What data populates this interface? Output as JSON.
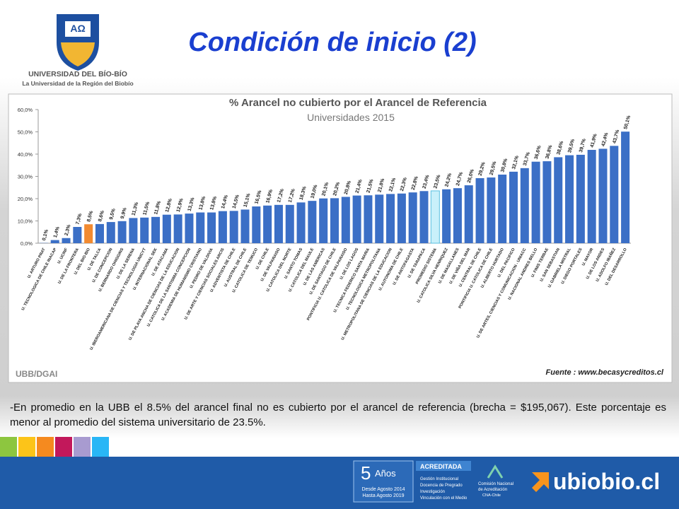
{
  "header": {
    "title": "Condición de inicio (2)",
    "university": "UNIVERSIDAD DEL BÍO-BÍO",
    "tagline": "La Universidad de la Región del Biobío"
  },
  "chart_data": {
    "type": "bar",
    "title": "% Arancel no cubierto por el Arancel de Referencia",
    "subtitle": "Universidades 2015",
    "categories": [
      "U. ARTURO PRAT",
      "U. TECNOLOGICA DE CHILE INACAP",
      "U. UCINF",
      "U. DE LA FRONTERA",
      "U. DEL BIO-BIO",
      "U. DE TALCA",
      "U. DE CONCEPCION",
      "U. BERNARDO OHIGGINS",
      "U. DE LA SERENA",
      "U. IBEROAMERICANA DE CIENCIAS Y TECNOLOGIA UNICYT",
      "U. INTERNACIONAL SEK",
      "U. DE ATACAMA",
      "U. DE PLAYA ANCHA DE CIENCIAS DE LA EDUCACION",
      "U. CATOLICA DE LA SANTISIMA CONCEPCION",
      "U. ACADEMIA DE HUMANISMO CRISTIANO",
      "U. PEDRO DE VALDIVIA",
      "U. DE ARTE Y CIENCIAS SOCIALES ARCIS",
      "U. ADVENTISTA DE CHILE",
      "U. AUSTRAL DE CHILE",
      "U. CATOLICA DE TEMUCO",
      "U. DE CHILE",
      "U. DE VALPARAISO",
      "U. CATOLICA DEL NORTE",
      "U. SANTO TOMAS",
      "U. CATOLICA DEL MAULE",
      "U. DE LAS AMERICAS",
      "U. DE SANTIAGO DE CHILE",
      "PONTIFICIA U. CATOLICA DE VALPARAISO",
      "U. DE LOS LAGOS",
      "U. TECNICA FEDERICO SANTA MARIA",
      "U. TECNOLOGICA METROPOLITANA",
      "U. METROPOLITANA DE CIENCIAS DE LA EDUCACION",
      "U. AUTONOMA DE CHILE",
      "U. DE ANTOFAGASTA",
      "U. DE TARAPACA",
      "PROMEDIO SISTEMA",
      "U. CATOLICA SILVA HENRIQUEZ",
      "U. DE MAGALLANES",
      "U. DE VIÑA DEL MAR",
      "U. CENTRAL DE CHILE",
      "PONTIFICIA U. CATOLICA DE CHILE",
      "U. ALBERTO HURTADO",
      "U. DEL PACIFICO",
      "U. DE ARTES, CIENCIAS Y COMUNICACION - UNIACC",
      "U. NACIONAL ANDRES BELLO",
      "U. FINIS TERRAE",
      "U. SAN SEBASTIAN",
      "U. GABRIELA MISTRAL",
      "U. DIEGO PORTALES",
      "U. MAYOR",
      "U. DE LOS ANDES",
      "U. ADOLFO IBAÑEZ",
      "U. DEL DESARROLLO"
    ],
    "values": [
      0.1,
      1.4,
      2.3,
      7.3,
      8.5,
      8.6,
      9.5,
      9.9,
      11.3,
      11.5,
      11.8,
      12.8,
      12.9,
      13.3,
      13.8,
      13.8,
      14.4,
      14.5,
      15.1,
      16.5,
      16.9,
      17.2,
      17.2,
      18.3,
      19.0,
      20.1,
      20.2,
      20.8,
      21.4,
      21.5,
      21.8,
      22.1,
      22.3,
      22.8,
      23.4,
      23.5,
      24.2,
      24.7,
      26.0,
      29.2,
      29.5,
      30.8,
      32.1,
      33.7,
      36.6,
      36.8,
      38.6,
      39.5,
      39.7,
      41.9,
      42.4,
      43.7,
      50.1
    ],
    "value_labels": [
      "0,1%",
      "1,4%",
      "2,3%",
      "7,3%",
      "8,5%",
      "8,6%",
      "9,5%",
      "9,9%",
      "11,3%",
      "11,5%",
      "11,8%",
      "12,8%",
      "12,9%",
      "13,3%",
      "13,8%",
      "13,8%",
      "14,4%",
      "14,5%",
      "15,1%",
      "16,5%",
      "16,9%",
      "17,2%",
      "17,2%",
      "18,3%",
      "19,0%",
      "20,1%",
      "20,2%",
      "20,8%",
      "21,4%",
      "21,5%",
      "21,8%",
      "22,1%",
      "22,3%",
      "22,8%",
      "23,4%",
      "23,5%",
      "24,2%",
      "24,7%",
      "26,0%",
      "29,2%",
      "29,5%",
      "30,8%",
      "32,1%",
      "33,7%",
      "36,6%",
      "36,8%",
      "38,6%",
      "39,5%",
      "39,7%",
      "41,9%",
      "42,4%",
      "43,7%",
      "50,1%"
    ],
    "colors": [
      "#3b6fc6",
      "#3b6fc6",
      "#3b6fc6",
      "#3b6fc6",
      "#f28a30",
      "#3b6fc6",
      "#3b6fc6",
      "#3b6fc6",
      "#3b6fc6",
      "#3b6fc6",
      "#3b6fc6",
      "#3b6fc6",
      "#3b6fc6",
      "#3b6fc6",
      "#3b6fc6",
      "#3b6fc6",
      "#3b6fc6",
      "#3b6fc6",
      "#3b6fc6",
      "#3b6fc6",
      "#3b6fc6",
      "#3b6fc6",
      "#3b6fc6",
      "#3b6fc6",
      "#3b6fc6",
      "#3b6fc6",
      "#3b6fc6",
      "#3b6fc6",
      "#3b6fc6",
      "#3b6fc6",
      "#3b6fc6",
      "#3b6fc6",
      "#3b6fc6",
      "#3b6fc6",
      "#3b6fc6",
      "#c9f0fa",
      "#3b6fc6",
      "#3b6fc6",
      "#3b6fc6",
      "#3b6fc6",
      "#3b6fc6",
      "#3b6fc6",
      "#3b6fc6",
      "#3b6fc6",
      "#3b6fc6",
      "#3b6fc6",
      "#3b6fc6",
      "#3b6fc6",
      "#3b6fc6",
      "#3b6fc6",
      "#3b6fc6",
      "#3b6fc6",
      "#3b6fc6"
    ],
    "ylim": [
      0,
      60
    ],
    "yticks": [
      {
        "value": 0,
        "label": "0,0%"
      },
      {
        "value": 10,
        "label": "10,0%"
      },
      {
        "value": 20,
        "label": "20,0%"
      },
      {
        "value": 30,
        "label": "30,0%"
      },
      {
        "value": 40,
        "label": "40,0%"
      },
      {
        "value": 50,
        "label": "50,0%"
      },
      {
        "value": 60,
        "label": "60,0%"
      }
    ],
    "grid": false
  },
  "chart_note": "UBB/DGAI",
  "source": "Fuente : www.becasycreditos.cl",
  "paragraph": "-En promedio en la UBB el 8.5% del arancel final no es cubierto por el arancel de referencia (brecha = $195,067). Este porcentaje es menor al promedio del sistema universitario de 23.5%.",
  "footer": {
    "years_number": "5",
    "years_word": "Años",
    "since": "Desde Agosto 2014",
    "until": "Hasta Agosto 2019",
    "accredited": "ACREDITADA",
    "areas": [
      "Gestión Institucional",
      "Docencia de Pregrado",
      "Investigación",
      "Vinculación con el Medio"
    ],
    "cna": [
      "Comisión Nacional",
      "de Acreditación",
      "CNA-Chile"
    ],
    "site": "ubiobio.cl"
  }
}
